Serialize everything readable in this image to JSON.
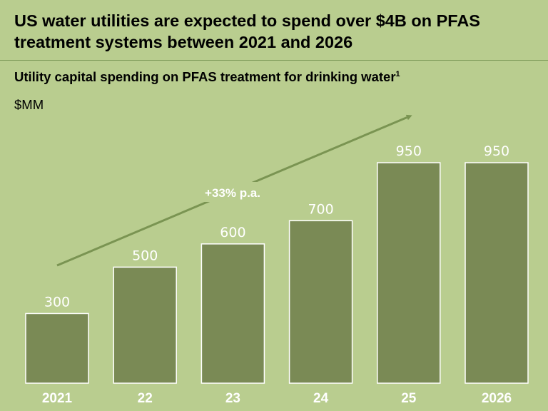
{
  "header": {
    "title": "US water utilities are expected to spend over $4B on PFAS treatment systems between 2021 and 2026"
  },
  "chart_data": {
    "type": "bar",
    "title": "Utility capital spending on PFAS treatment for drinking water",
    "title_footnote": "1",
    "ylabel": "$MM",
    "xlabel": "",
    "categories": [
      "2021",
      "22",
      "23",
      "24",
      "25",
      "2026"
    ],
    "values": [
      300,
      500,
      600,
      700,
      950,
      950
    ],
    "ylim": [
      0,
      950
    ],
    "grid": false,
    "annotation": "+33% p.a.",
    "colors": {
      "bar": "#7a8a55",
      "bar_border": "#ffffff",
      "arrow": "#7a9452",
      "background": "#b9cd8f",
      "text_on_chart": "#ffffff"
    }
  }
}
